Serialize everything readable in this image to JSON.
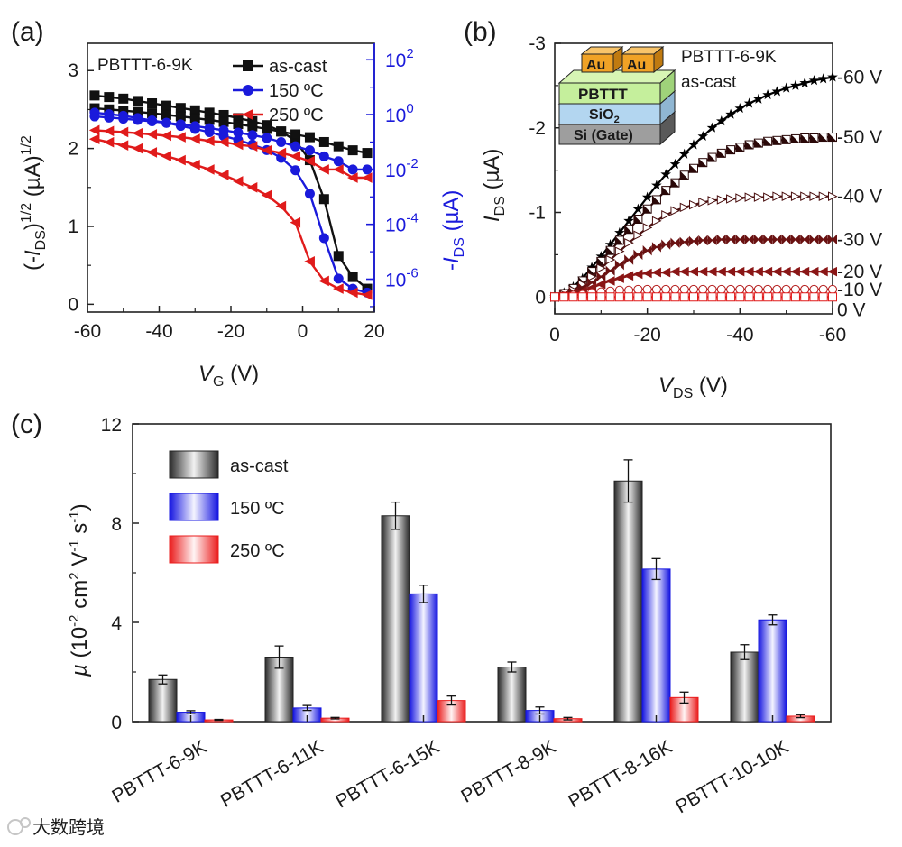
{
  "chart_data": [
    {
      "panel": "(a)",
      "type": "line",
      "annotation": "PBTTT-6-9K",
      "xlabel": "VG (V)",
      "ylabel_left": "(-IDS)1/2 (µA)1/2",
      "ylabel_right": "-IDS (µA)",
      "xlim": [
        -60,
        20
      ],
      "ylim_left": [
        -0.1,
        3.35
      ],
      "ylim_right_log": [
        -7.2,
        2.6
      ],
      "x_ticks": [
        "-60",
        "-40",
        "-20",
        "0",
        "20"
      ],
      "y_ticks_left": [
        "0",
        "1",
        "2",
        "3"
      ],
      "y_ticks_right": [
        "10^-6",
        "10^-4",
        "10^-2",
        "10^0",
        "10^2"
      ],
      "legend": {
        "placement": "top-right",
        "entries": [
          "as-cast",
          "150 ºC",
          "250 ºC"
        ]
      },
      "x": [
        -58,
        -54,
        -50,
        -46,
        -42,
        -38,
        -34,
        -30,
        -26,
        -22,
        -18,
        -14,
        -10,
        -6,
        -2,
        2,
        6,
        10,
        14,
        18
      ],
      "series": [
        {
          "name": "as-cast",
          "color": "#111111",
          "marker": "square",
          "sqrt_values": [
            2.68,
            2.66,
            2.64,
            2.61,
            2.58,
            2.55,
            2.52,
            2.49,
            2.46,
            2.43,
            2.39,
            2.35,
            2.3,
            2.22,
            2.1,
            1.85,
            1.35,
            0.62,
            0.35,
            0.2
          ],
          "log_values": [
            1.7,
            1.55,
            1.4,
            1.25,
            1.12,
            0.98,
            0.86,
            0.75,
            0.64,
            0.54,
            0.45,
            0.37,
            0.3,
            0.24,
            0.19,
            0.15,
            0.1,
            0.07,
            0.05,
            0.04
          ]
        },
        {
          "name": "150 ºC",
          "color": "#1a1adb",
          "marker": "circle",
          "sqrt_values": [
            2.46,
            2.44,
            2.42,
            2.39,
            2.36,
            2.33,
            2.29,
            2.25,
            2.21,
            2.16,
            2.11,
            2.05,
            1.98,
            1.88,
            1.72,
            1.42,
            0.85,
            0.33,
            0.2,
            0.15
          ],
          "log_values": [
            0.86,
            0.78,
            0.71,
            0.64,
            0.57,
            0.5,
            0.44,
            0.38,
            0.32,
            0.27,
            0.22,
            0.18,
            0.14,
            0.1,
            0.07,
            0.05,
            0.03,
            0.02,
            0.01,
            0.01
          ]
        },
        {
          "name": "250 ºC",
          "color": "#e01b1b",
          "marker": "triangle-left",
          "sqrt_values": [
            2.12,
            2.08,
            2.04,
            2.0,
            1.95,
            1.9,
            1.85,
            1.79,
            1.73,
            1.66,
            1.58,
            1.5,
            1.4,
            1.26,
            1.05,
            0.55,
            0.3,
            0.2,
            0.15,
            0.12
          ],
          "log_values": [
            0.27,
            0.25,
            0.23,
            0.21,
            0.19,
            0.17,
            0.15,
            0.13,
            0.11,
            0.1,
            0.08,
            0.07,
            0.05,
            0.04,
            0.03,
            0.02,
            0.01,
            0.01,
            0.005,
            0.005
          ]
        }
      ]
    },
    {
      "panel": "(b)",
      "type": "line",
      "annotation": [
        "PBTTT-6-9K",
        "as-cast"
      ],
      "xlabel": "VDS (V)",
      "ylabel": "IDS (µA)",
      "xlim": [
        0,
        -60
      ],
      "ylim": [
        0.2,
        -3.0
      ],
      "x_ticks": [
        "0",
        "-20",
        "-40",
        "-60"
      ],
      "y_ticks": [
        "0",
        "-1",
        "-2",
        "-3"
      ],
      "inset_labels": {
        "au1": "Au",
        "au2": "Au",
        "pbttt": "PBTTT",
        "sio2": "SiO",
        "sio2_sub": "2",
        "si": "Si (Gate)"
      },
      "x": [
        0,
        -2,
        -4,
        -6,
        -8,
        -10,
        -12,
        -14,
        -16,
        -18,
        -20,
        -22,
        -24,
        -26,
        -28,
        -30,
        -32,
        -34,
        -36,
        -38,
        -40,
        -42,
        -44,
        -46,
        -48,
        -50,
        -52,
        -54,
        -56,
        -58,
        -60
      ],
      "series": [
        {
          "name": "-60 V",
          "color": "#000000",
          "values": [
            0,
            -0.05,
            -0.12,
            -0.22,
            -0.35,
            -0.48,
            -0.62,
            -0.76,
            -0.9,
            -1.04,
            -1.18,
            -1.32,
            -1.45,
            -1.57,
            -1.69,
            -1.8,
            -1.9,
            -2.0,
            -2.08,
            -2.16,
            -2.23,
            -2.29,
            -2.34,
            -2.39,
            -2.43,
            -2.47,
            -2.5,
            -2.53,
            -2.56,
            -2.58,
            -2.6
          ]
        },
        {
          "name": "-50 V",
          "color": "#2a0808",
          "values": [
            0,
            -0.04,
            -0.1,
            -0.19,
            -0.3,
            -0.42,
            -0.55,
            -0.67,
            -0.8,
            -0.92,
            -1.04,
            -1.15,
            -1.26,
            -1.35,
            -1.44,
            -1.52,
            -1.59,
            -1.65,
            -1.7,
            -1.74,
            -1.77,
            -1.8,
            -1.82,
            -1.84,
            -1.85,
            -1.86,
            -1.87,
            -1.88,
            -1.88,
            -1.89,
            -1.89
          ]
        },
        {
          "name": "-40 V",
          "color": "#4a0f0f",
          "values": [
            0,
            -0.03,
            -0.08,
            -0.15,
            -0.24,
            -0.34,
            -0.44,
            -0.54,
            -0.64,
            -0.73,
            -0.82,
            -0.9,
            -0.97,
            -1.02,
            -1.06,
            -1.09,
            -1.12,
            -1.14,
            -1.15,
            -1.16,
            -1.17,
            -1.18,
            -1.18,
            -1.18,
            -1.19,
            -1.19,
            -1.19,
            -1.19,
            -1.19,
            -1.19,
            -1.19
          ]
        },
        {
          "name": "-30 V",
          "color": "#6a1212",
          "values": [
            0,
            -0.02,
            -0.06,
            -0.11,
            -0.17,
            -0.24,
            -0.31,
            -0.38,
            -0.44,
            -0.5,
            -0.55,
            -0.59,
            -0.62,
            -0.64,
            -0.65,
            -0.66,
            -0.67,
            -0.67,
            -0.68,
            -0.68,
            -0.68,
            -0.68,
            -0.68,
            -0.68,
            -0.68,
            -0.68,
            -0.68,
            -0.68,
            -0.68,
            -0.68,
            -0.68
          ]
        },
        {
          "name": "-20 V",
          "color": "#8a1616",
          "values": [
            0,
            -0.02,
            -0.04,
            -0.07,
            -0.11,
            -0.15,
            -0.19,
            -0.22,
            -0.25,
            -0.27,
            -0.28,
            -0.29,
            -0.29,
            -0.3,
            -0.3,
            -0.3,
            -0.3,
            -0.3,
            -0.3,
            -0.3,
            -0.3,
            -0.3,
            -0.3,
            -0.3,
            -0.3,
            -0.3,
            -0.3,
            -0.3,
            -0.3,
            -0.3,
            -0.3
          ]
        },
        {
          "name": "-10 V",
          "color": "#b41c1c",
          "values": [
            0,
            -0.01,
            -0.02,
            -0.03,
            -0.05,
            -0.06,
            -0.07,
            -0.08,
            -0.08,
            -0.09,
            -0.09,
            -0.09,
            -0.09,
            -0.09,
            -0.09,
            -0.09,
            -0.09,
            -0.09,
            -0.09,
            -0.09,
            -0.09,
            -0.09,
            -0.09,
            -0.09,
            -0.09,
            -0.09,
            -0.09,
            -0.09,
            -0.09,
            -0.09,
            -0.09
          ]
        },
        {
          "name": "0 V",
          "color": "#e01b1b",
          "values": [
            0,
            0,
            0,
            0,
            0,
            0,
            0,
            0,
            0,
            0,
            0,
            0,
            0,
            0,
            0,
            0,
            0,
            0,
            0,
            0,
            0,
            0,
            0,
            0,
            0,
            0,
            0,
            0,
            0,
            0,
            0
          ]
        }
      ]
    },
    {
      "panel": "(c)",
      "type": "bar",
      "ylabel": "µ (10-2 cm2 V-1 s-1)",
      "ylim": [
        0,
        12
      ],
      "y_ticks": [
        "0",
        "4",
        "8",
        "12"
      ],
      "categories": [
        "PBTTT-6-9K",
        "PBTTT-6-11K",
        "PBTTT-6-15K",
        "PBTTT-8-9K",
        "PBTTT-8-16K",
        "PBTTT-10-10K"
      ],
      "legend": {
        "placement": "top-left",
        "entries": [
          "as-cast",
          "150 ºC",
          "250 ºC"
        ]
      },
      "series": [
        {
          "name": "as-cast",
          "color": "#8a8a8a",
          "values": [
            1.7,
            2.6,
            8.3,
            2.2,
            9.7,
            2.8
          ],
          "errors": [
            0.18,
            0.45,
            0.55,
            0.2,
            0.85,
            0.3
          ]
        },
        {
          "name": "150 ºC",
          "color": "#3a3ae8",
          "values": [
            0.38,
            0.55,
            5.15,
            0.45,
            6.15,
            4.1
          ],
          "errors": [
            0.06,
            0.1,
            0.35,
            0.14,
            0.42,
            0.2
          ]
        },
        {
          "name": "250 ºC",
          "color": "#ef4a4a",
          "values": [
            0.07,
            0.14,
            0.85,
            0.12,
            0.97,
            0.22
          ],
          "errors": [
            0.02,
            0.03,
            0.18,
            0.05,
            0.22,
            0.06
          ]
        }
      ]
    }
  ],
  "watermark": "大数跨境"
}
